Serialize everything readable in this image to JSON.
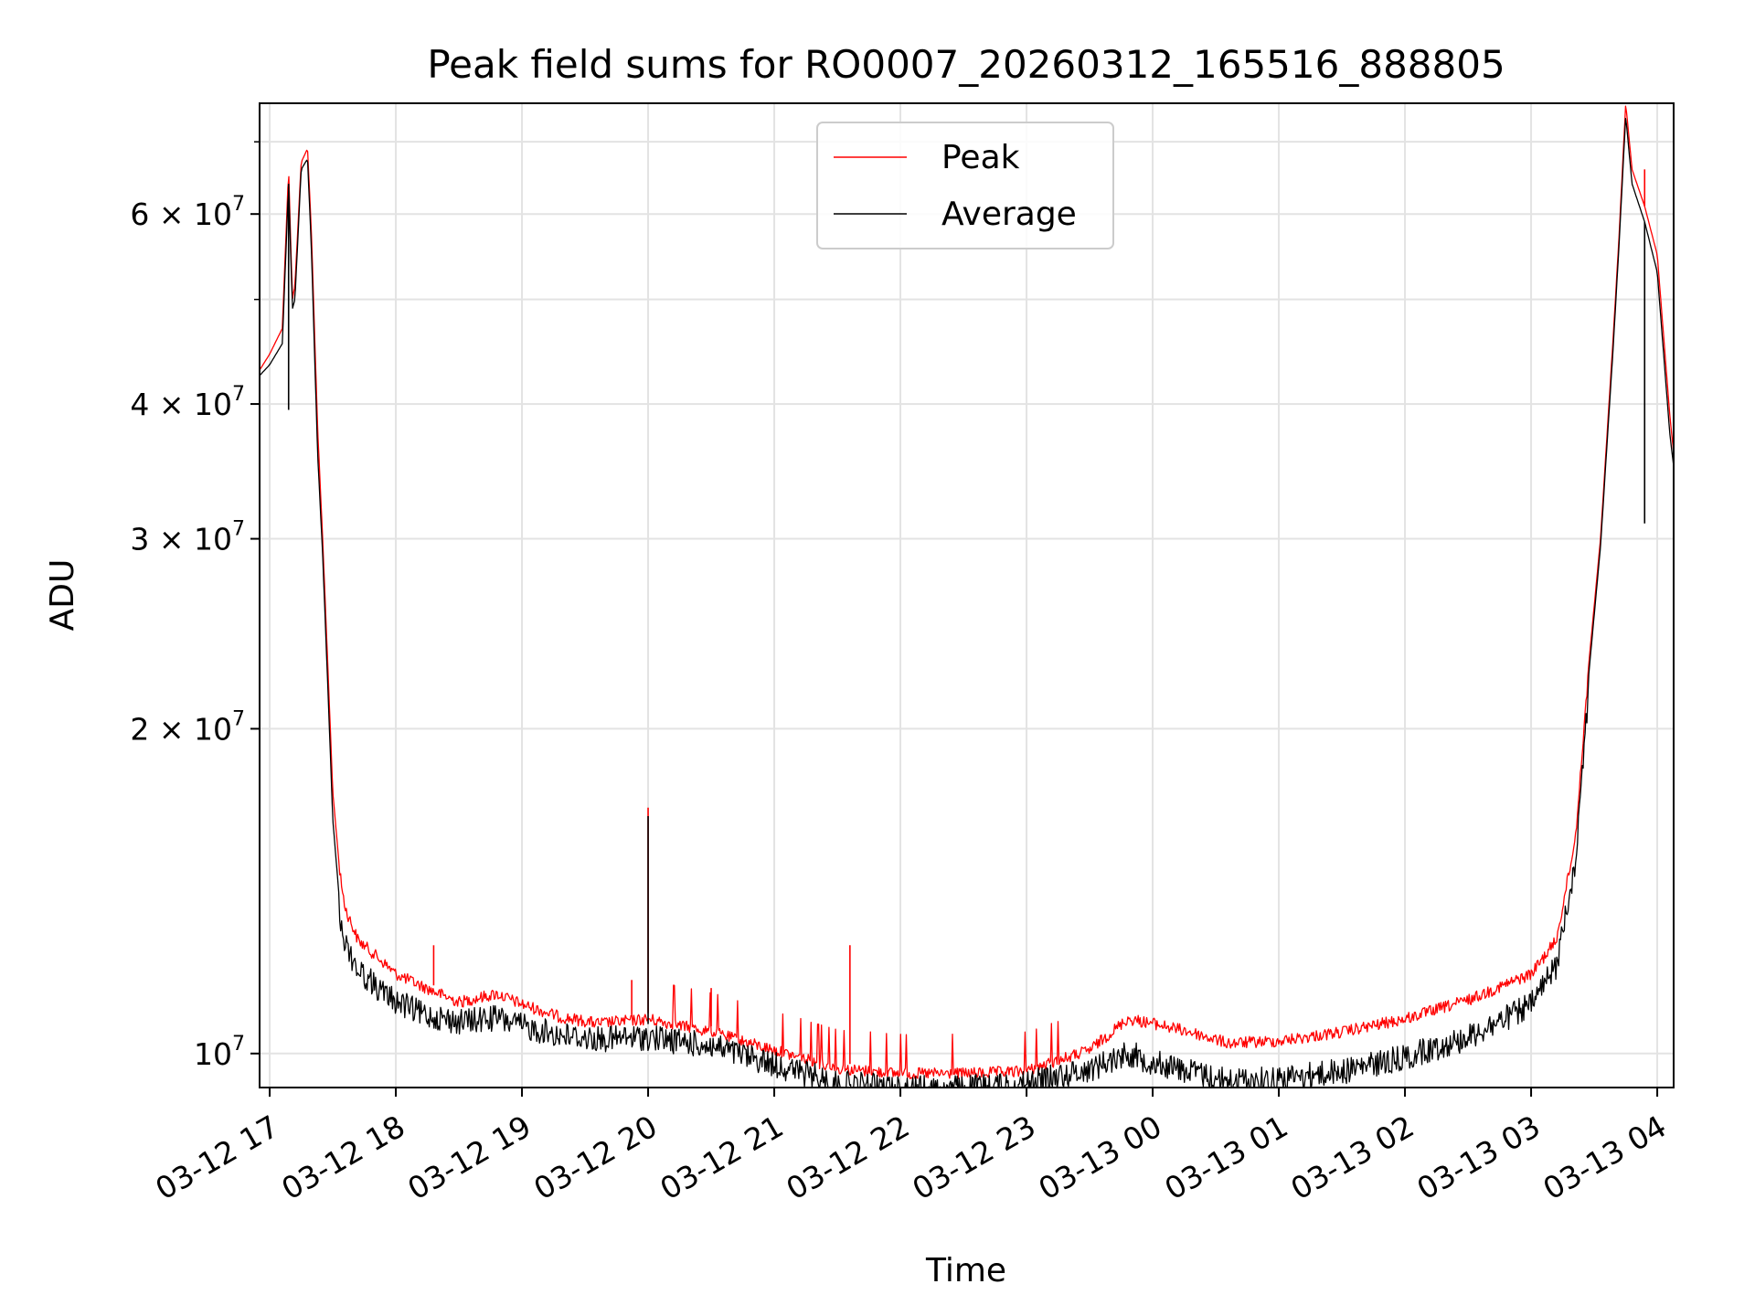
{
  "chart_data": {
    "type": "line",
    "title": "Peak field sums for RO0007_20260312_165516_888805",
    "xlabel": "Time",
    "ylabel": "ADU",
    "yscale": "log",
    "ylim": [
      9300000,
      76000000
    ],
    "xlim": [
      -0.08,
      11.13
    ],
    "x_units": "hours after 03-12 17:00",
    "grid": true,
    "legend_position": "upper center",
    "x_ticks": [
      {
        "value": 0,
        "label": "03-12 17"
      },
      {
        "value": 1,
        "label": "03-12 18"
      },
      {
        "value": 2,
        "label": "03-12 19"
      },
      {
        "value": 3,
        "label": "03-12 20"
      },
      {
        "value": 4,
        "label": "03-12 21"
      },
      {
        "value": 5,
        "label": "03-12 22"
      },
      {
        "value": 6,
        "label": "03-12 23"
      },
      {
        "value": 7,
        "label": "03-13 00"
      },
      {
        "value": 8,
        "label": "03-13 01"
      },
      {
        "value": 9,
        "label": "03-13 02"
      },
      {
        "value": 10,
        "label": "03-13 03"
      },
      {
        "value": 11,
        "label": "03-13 04"
      }
    ],
    "y_ticks": [
      {
        "value": 10000000,
        "base": "10",
        "exp": "7"
      },
      {
        "value": 20000000,
        "base": "2 × 10",
        "exp": "7"
      },
      {
        "value": 30000000,
        "base": "3 × 10",
        "exp": "7"
      },
      {
        "value": 40000000,
        "base": "4 × 10",
        "exp": "7"
      },
      {
        "value": 60000000,
        "base": "6 × 10",
        "exp": "7"
      }
    ],
    "y_minor_ticks": [
      50000000,
      70000000
    ],
    "series": [
      {
        "name": "Peak",
        "color": "#ff0000",
        "x": [
          -0.08,
          0.0,
          0.1,
          0.15,
          0.18,
          0.2,
          0.25,
          0.3,
          0.33,
          0.38,
          0.42,
          0.47,
          0.5,
          0.55,
          0.6,
          0.7,
          0.8,
          0.9,
          1.0,
          1.2,
          1.5,
          1.8,
          2.0,
          2.3,
          2.6,
          3.0,
          3.5,
          4.0,
          4.5,
          5.0,
          5.5,
          6.0,
          6.5,
          6.8,
          7.0,
          7.3,
          7.6,
          8.0,
          8.5,
          9.0,
          9.5,
          10.0,
          10.2,
          10.35,
          10.45,
          10.55,
          10.65,
          10.7,
          10.75,
          10.8,
          10.9,
          11.0,
          11.1,
          11.13
        ],
        "values": [
          43000000,
          44500000,
          47000000,
          66000000,
          50000000,
          51500000,
          67000000,
          69000000,
          58000000,
          38000000,
          30000000,
          21500000,
          17500000,
          15000000,
          13800000,
          12900000,
          12600000,
          12300000,
          12000000,
          11700000,
          11300000,
          11500000,
          11250000,
          10950000,
          10800000,
          10900000,
          10600000,
          10200000,
          9800000,
          9700000,
          9700000,
          9750000,
          10200000,
          10900000,
          10800000,
          10600000,
          10350000,
          10400000,
          10600000,
          10900000,
          11350000,
          12000000,
          12900000,
          16000000,
          22500000,
          30000000,
          46000000,
          58000000,
          76000000,
          66000000,
          61000000,
          55000000,
          39000000,
          36000000
        ]
      },
      {
        "name": "Average",
        "color": "#000000",
        "x": [
          -0.08,
          0.0,
          0.1,
          0.15,
          0.18,
          0.2,
          0.25,
          0.3,
          0.33,
          0.38,
          0.42,
          0.47,
          0.5,
          0.55,
          0.6,
          0.7,
          0.8,
          0.9,
          1.0,
          1.2,
          1.5,
          1.8,
          2.0,
          2.3,
          2.6,
          3.0,
          3.5,
          4.0,
          4.5,
          5.0,
          5.5,
          6.0,
          6.5,
          6.8,
          7.0,
          7.3,
          7.6,
          8.0,
          8.5,
          9.0,
          9.5,
          10.0,
          10.2,
          10.35,
          10.45,
          10.55,
          10.65,
          10.7,
          10.75,
          10.8,
          10.9,
          11.0,
          11.1,
          11.13
        ],
        "values": [
          42500000,
          43500000,
          45500000,
          64000000,
          49000000,
          50000000,
          66000000,
          67500000,
          56000000,
          36000000,
          29000000,
          20500000,
          16500000,
          14000000,
          13000000,
          12300000,
          12000000,
          11700000,
          11500000,
          11200000,
          11000000,
          11100000,
          10900000,
          10700000,
          10600000,
          10650000,
          10450000,
          10050000,
          9650000,
          9550000,
          9550000,
          9650000,
          9950000,
          10300000,
          10100000,
          9900000,
          9700000,
          9750000,
          9900000,
          10200000,
          10650000,
          11400000,
          12400000,
          15500000,
          22000000,
          29500000,
          45000000,
          57000000,
          74000000,
          64000000,
          59000000,
          53000000,
          37500000,
          35000000
        ]
      }
    ],
    "spikes": [
      {
        "series": "Average",
        "x": 0.15,
        "value": 39500000
      },
      {
        "series": "Peak",
        "x": 1.3,
        "value": 12600000
      },
      {
        "series": "Peak",
        "x": 3.0,
        "value": 16900000
      },
      {
        "series": "Average",
        "x": 3.0,
        "value": 16600000
      },
      {
        "series": "Peak",
        "x": 2.87,
        "value": 11700000
      },
      {
        "series": "Peak",
        "x": 3.5,
        "value": 11500000
      },
      {
        "series": "Peak",
        "x": 4.6,
        "value": 12600000
      },
      {
        "series": "Average",
        "x": 10.9,
        "value": 31000000
      },
      {
        "series": "Peak",
        "x": 10.9,
        "value": 66000000
      }
    ]
  }
}
